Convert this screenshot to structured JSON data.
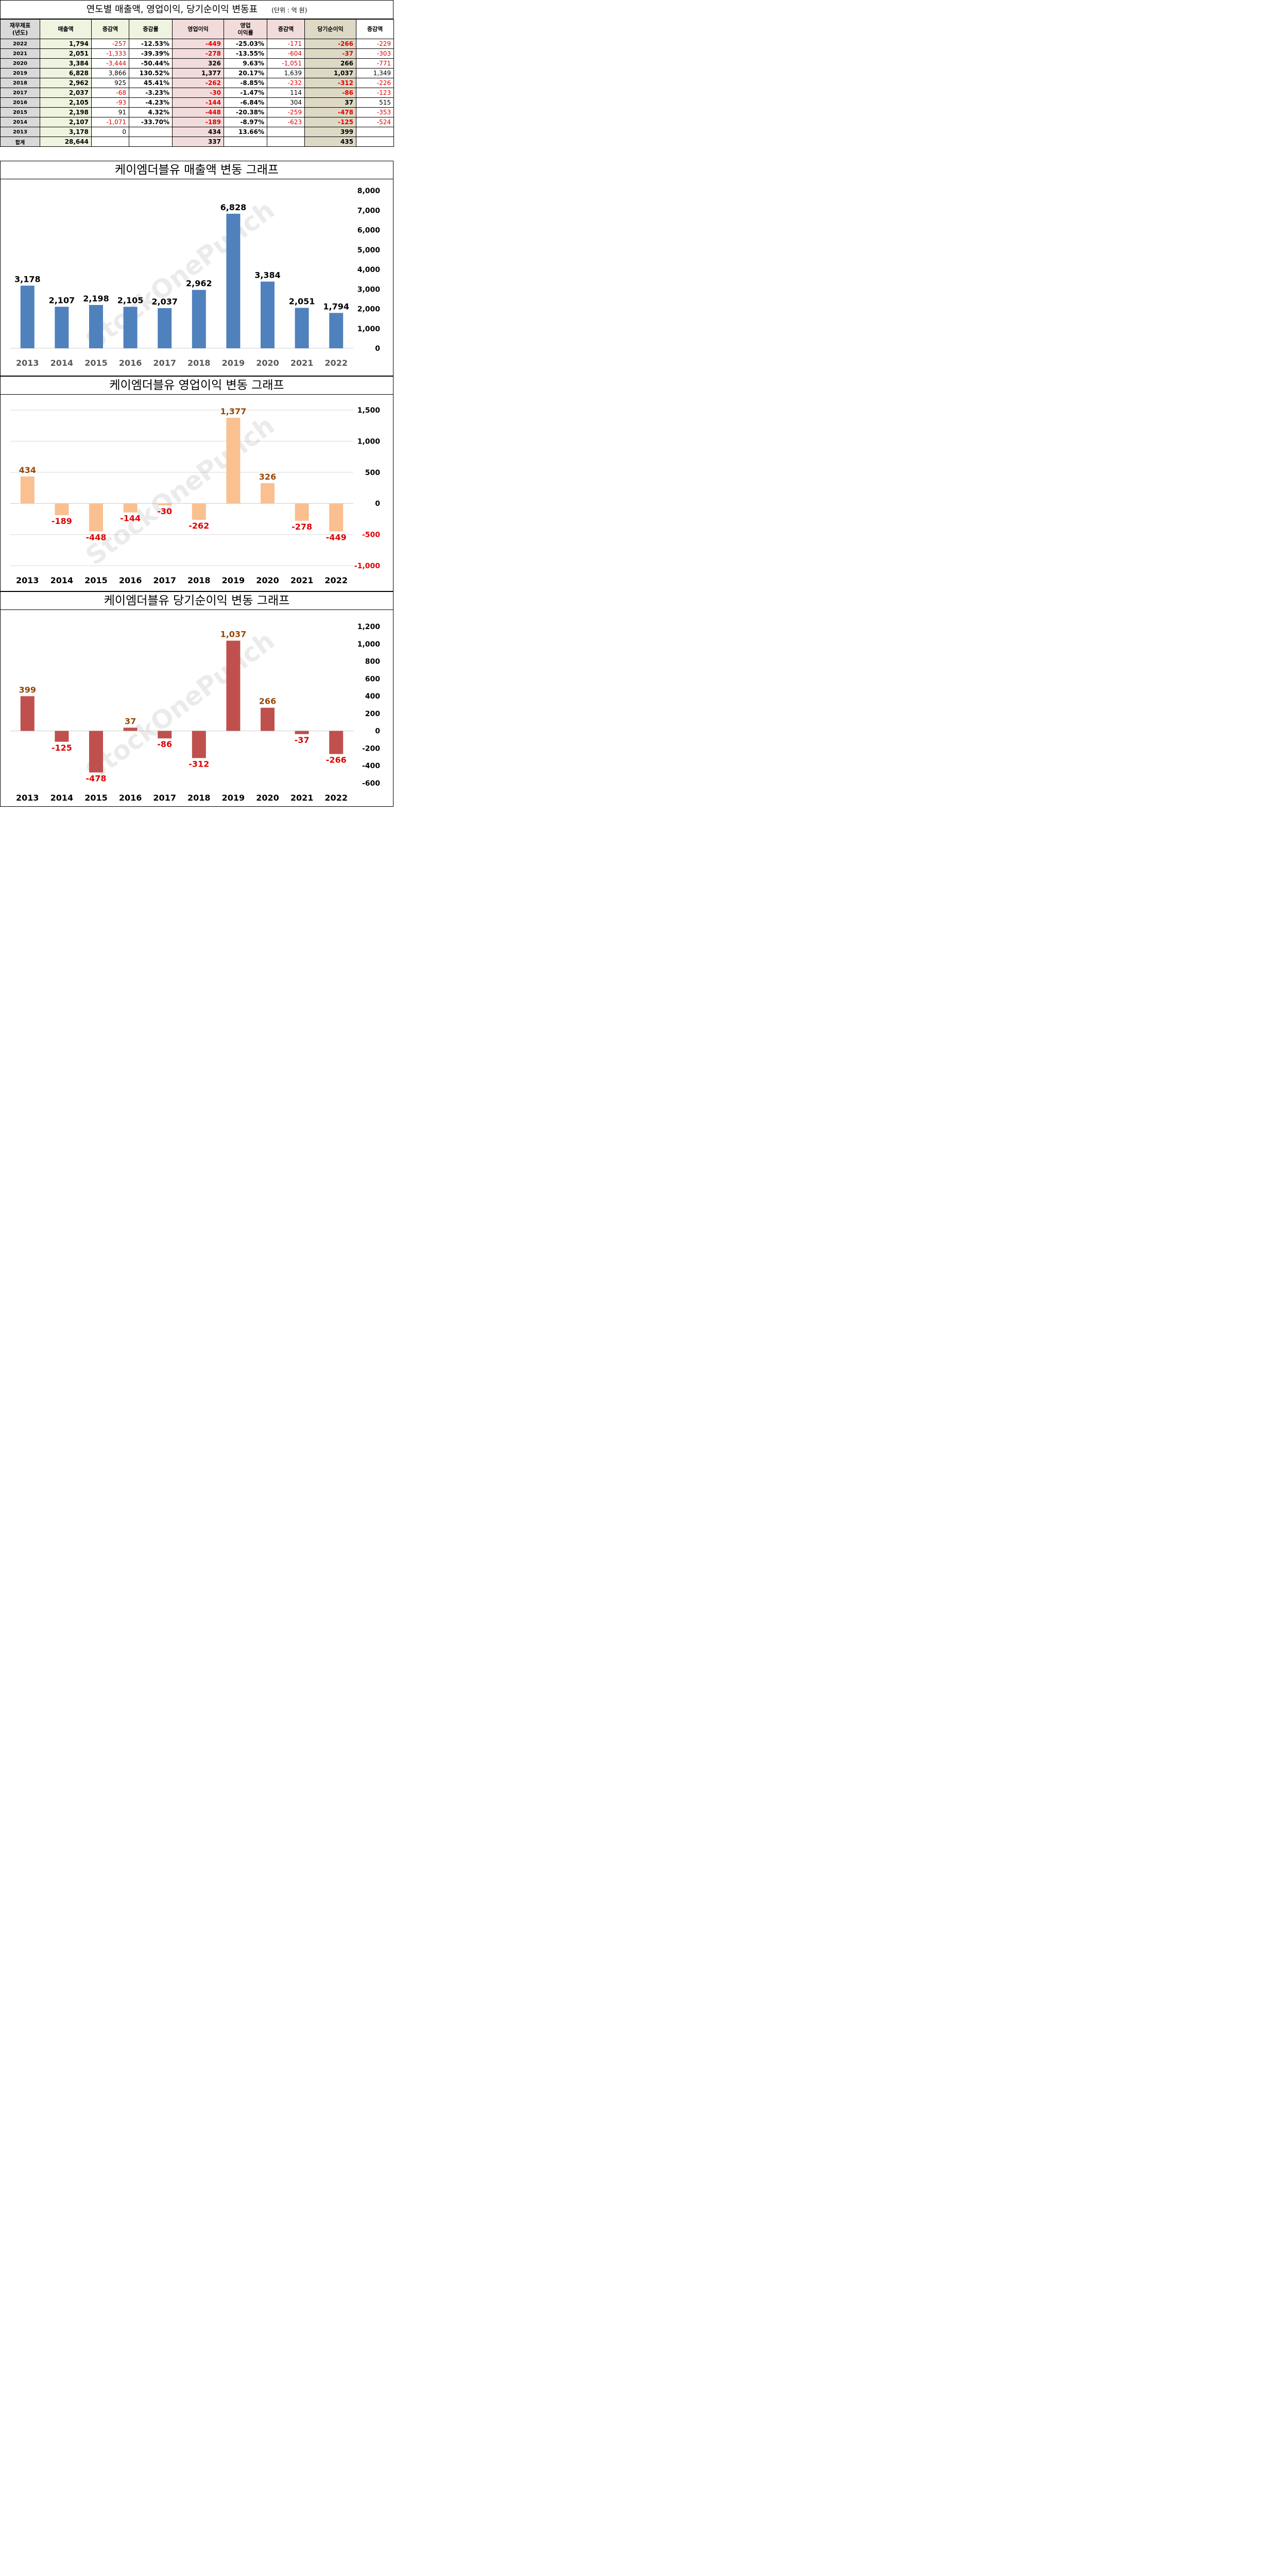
{
  "table": {
    "title": "연도별 매출액, 영업이익, 당기순이익 변동표",
    "unit": "(단위 : 억 원)",
    "headers": [
      "재무제표\n(년도)",
      "매출액",
      "증감액",
      "증감률",
      "영업이익",
      "영업\n이익률",
      "증감액",
      "당기순이익",
      "증감액"
    ],
    "rows": [
      {
        "year": "2022",
        "sales": "1,794",
        "sales_chg": "-257",
        "sales_rate": "-12.53%",
        "op": "-449",
        "op_margin": "-25.03%",
        "op_chg": "-171",
        "net": "-266",
        "net_chg": "-229"
      },
      {
        "year": "2021",
        "sales": "2,051",
        "sales_chg": "-1,333",
        "sales_rate": "-39.39%",
        "op": "-278",
        "op_margin": "-13.55%",
        "op_chg": "-604",
        "net": "-37",
        "net_chg": "-303"
      },
      {
        "year": "2020",
        "sales": "3,384",
        "sales_chg": "-3,444",
        "sales_rate": "-50.44%",
        "op": "326",
        "op_margin": "9.63%",
        "op_chg": "-1,051",
        "net": "266",
        "net_chg": "-771"
      },
      {
        "year": "2019",
        "sales": "6,828",
        "sales_chg": "3,866",
        "sales_rate": "130.52%",
        "op": "1,377",
        "op_margin": "20.17%",
        "op_chg": "1,639",
        "net": "1,037",
        "net_chg": "1,349"
      },
      {
        "year": "2018",
        "sales": "2,962",
        "sales_chg": "925",
        "sales_rate": "45.41%",
        "op": "-262",
        "op_margin": "-8.85%",
        "op_chg": "-232",
        "net": "-312",
        "net_chg": "-226"
      },
      {
        "year": "2017",
        "sales": "2,037",
        "sales_chg": "-68",
        "sales_rate": "-3.23%",
        "op": "-30",
        "op_margin": "-1.47%",
        "op_chg": "114",
        "net": "-86",
        "net_chg": "-123"
      },
      {
        "year": "2016",
        "sales": "2,105",
        "sales_chg": "-93",
        "sales_rate": "-4.23%",
        "op": "-144",
        "op_margin": "-6.84%",
        "op_chg": "304",
        "net": "37",
        "net_chg": "515"
      },
      {
        "year": "2015",
        "sales": "2,198",
        "sales_chg": "91",
        "sales_rate": "4.32%",
        "op": "-448",
        "op_margin": "-20.38%",
        "op_chg": "-259",
        "net": "-478",
        "net_chg": "-353"
      },
      {
        "year": "2014",
        "sales": "2,107",
        "sales_chg": "-1,071",
        "sales_rate": "-33.70%",
        "op": "-189",
        "op_margin": "-8.97%",
        "op_chg": "-623",
        "net": "-125",
        "net_chg": "-524"
      },
      {
        "year": "2013",
        "sales": "3,178",
        "sales_chg": "0",
        "sales_rate": "",
        "op": "434",
        "op_margin": "13.66%",
        "op_chg": "",
        "net": "399",
        "net_chg": ""
      }
    ],
    "total": {
      "year": "합계",
      "sales": "28,644",
      "op": "337",
      "net": "435"
    }
  },
  "watermark": "StockOnePunch",
  "chart_data": [
    {
      "type": "bar",
      "title": "케이엠더블유 매출액 변동 그래프",
      "categories": [
        "2013",
        "2014",
        "2015",
        "2016",
        "2017",
        "2018",
        "2019",
        "2020",
        "2021",
        "2022"
      ],
      "values": [
        3178,
        2107,
        2198,
        2105,
        2037,
        2962,
        6828,
        3384,
        2051,
        1794
      ],
      "labels": [
        "3,178",
        "2,107",
        "2,198",
        "2,105",
        "2,037",
        "2,962",
        "6,828",
        "3,384",
        "2,051",
        "1,794"
      ],
      "ylim": [
        0,
        8000
      ],
      "yticks": [
        "8,000",
        "7,000",
        "6,000",
        "5,000",
        "4,000",
        "3,000",
        "2,000",
        "1,000",
        "0"
      ],
      "ytick_values": [
        8000,
        7000,
        6000,
        5000,
        4000,
        3000,
        2000,
        1000,
        0
      ],
      "bar_color": "#4f81bd",
      "label_color_pos": "#000000",
      "label_color_neg": "#000000",
      "grid": false
    },
    {
      "type": "bar",
      "title": "케이엠더블유 영업이익 변동 그래프",
      "categories": [
        "2013",
        "2014",
        "2015",
        "2016",
        "2017",
        "2018",
        "2019",
        "2020",
        "2021",
        "2022"
      ],
      "values": [
        434,
        -189,
        -448,
        -144,
        -30,
        -262,
        1377,
        326,
        -278,
        -449
      ],
      "labels": [
        "434",
        "-189",
        "-448",
        "-144",
        "-30",
        "-262",
        "1,377",
        "326",
        "-278",
        "-449"
      ],
      "ylim": [
        -1000,
        1500
      ],
      "yticks": [
        "1,500",
        "1,000",
        "500",
        "0",
        "-500",
        "-1,000"
      ],
      "ytick_values": [
        1500,
        1000,
        500,
        0,
        -500,
        -1000
      ],
      "bar_color": "#fac090",
      "label_color_pos": "#974706",
      "label_color_neg": "#e00000",
      "grid": true
    },
    {
      "type": "bar",
      "title": "케이엠더블유 당기순이익 변동 그래프",
      "categories": [
        "2013",
        "2014",
        "2015",
        "2016",
        "2017",
        "2018",
        "2019",
        "2020",
        "2021",
        "2022"
      ],
      "values": [
        399,
        -125,
        -478,
        37,
        -86,
        -312,
        1037,
        266,
        -37,
        -266
      ],
      "labels": [
        "399",
        "-125",
        "-478",
        "37",
        "-86",
        "-312",
        "1,037",
        "266",
        "-37",
        "-266"
      ],
      "ylim": [
        -600,
        1200
      ],
      "yticks": [
        "1,200",
        "1,000",
        "800",
        "600",
        "400",
        "200",
        "0",
        "-200",
        "-400",
        "-600"
      ],
      "ytick_values": [
        1200,
        1000,
        800,
        600,
        400,
        200,
        0,
        -200,
        -400,
        -600
      ],
      "bar_color": "#c0504d",
      "label_color_pos": "#974706",
      "label_color_neg": "#e00000",
      "grid": false
    }
  ]
}
